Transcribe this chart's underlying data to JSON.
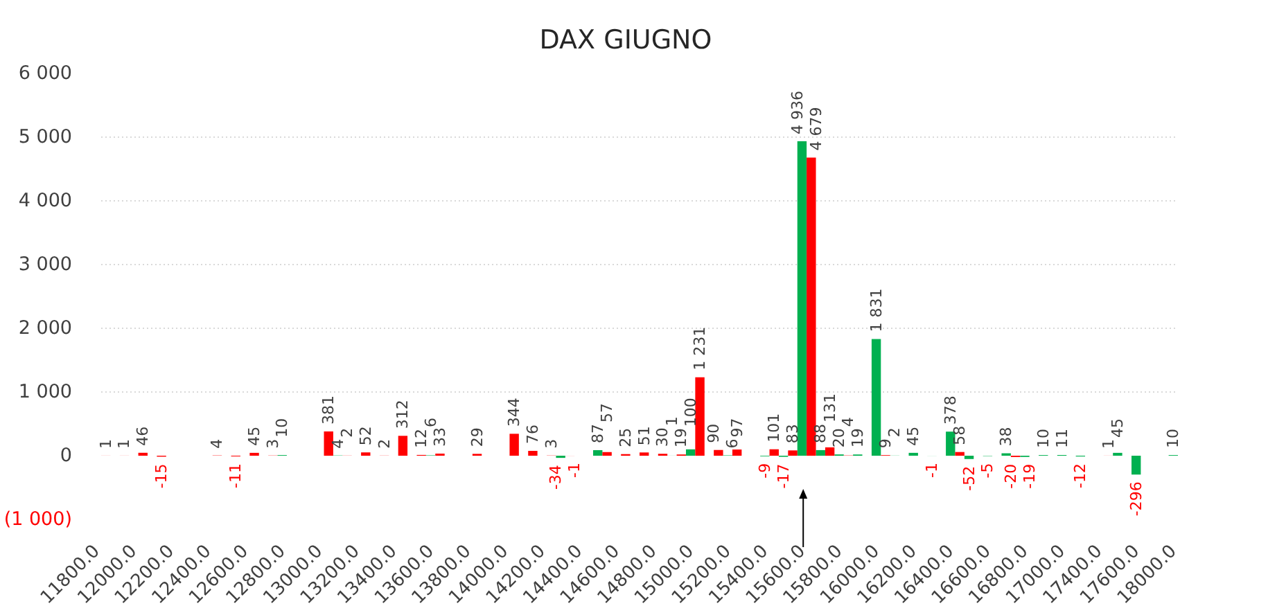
{
  "chart_data": {
    "type": "bar",
    "title": "DAX GIUGNO",
    "categories": [
      "11800.0",
      null,
      "12000.0",
      null,
      "12200.0",
      null,
      "12400.0",
      null,
      "12600.0",
      null,
      "12800.0",
      null,
      "13000.0",
      null,
      "13200.0",
      null,
      "13400.0",
      null,
      "13600.0",
      null,
      "13800.0",
      null,
      "14000.0",
      null,
      "14200.0",
      null,
      "14400.0",
      null,
      "14600.0",
      null,
      "14800.0",
      null,
      "15000.0",
      null,
      "15200.0",
      null,
      "15400.0",
      null,
      "15600.0",
      null,
      "15800.0",
      null,
      "16000.0",
      null,
      "16200.0",
      null,
      "16400.0",
      null,
      "16600.0",
      null,
      "16800.0",
      null,
      "17000.0",
      null,
      "17400.0",
      null,
      "17600.0",
      null,
      "18000.0"
    ],
    "series": [
      {
        "color": "#00b050",
        "values": [
          null,
          null,
          null,
          null,
          null,
          null,
          null,
          null,
          null,
          null,
          10,
          null,
          null,
          4,
          null,
          null,
          null,
          null,
          6,
          null,
          null,
          null,
          null,
          null,
          null,
          -34,
          null,
          87,
          null,
          null,
          null,
          1,
          100,
          null,
          6,
          null,
          -9,
          -17,
          4936,
          88,
          20,
          19,
          1831,
          2,
          45,
          -1,
          378,
          -52,
          -5,
          38,
          -19,
          10,
          11,
          -12,
          null,
          45,
          -296,
          null,
          10
        ]
      },
      {
        "color": "#ff0000",
        "values": [
          1,
          1,
          46,
          -15,
          null,
          null,
          4,
          -11,
          45,
          3,
          null,
          null,
          381,
          2,
          52,
          2,
          312,
          12,
          33,
          null,
          29,
          null,
          344,
          76,
          3,
          -1,
          null,
          57,
          25,
          51,
          30,
          19,
          1231,
          90,
          97,
          null,
          101,
          83,
          4679,
          131,
          4,
          null,
          9,
          null,
          null,
          null,
          58,
          null,
          null,
          -20,
          null,
          null,
          null,
          null,
          1,
          null,
          null,
          null,
          null
        ]
      }
    ],
    "ylim": [
      -1000,
      6000
    ],
    "yticks": [
      {
        "value": -1000,
        "label": "(1 000)"
      },
      0,
      {
        "value": 1000,
        "label": "1 000"
      },
      {
        "value": 2000,
        "label": "2 000"
      },
      {
        "value": 3000,
        "label": "3 000"
      },
      {
        "value": 4000,
        "label": "4 000"
      },
      {
        "value": 5000,
        "label": "5 000"
      },
      {
        "value": 6000,
        "label": "6 000"
      }
    ],
    "grid": "y",
    "data_labels": true
  }
}
